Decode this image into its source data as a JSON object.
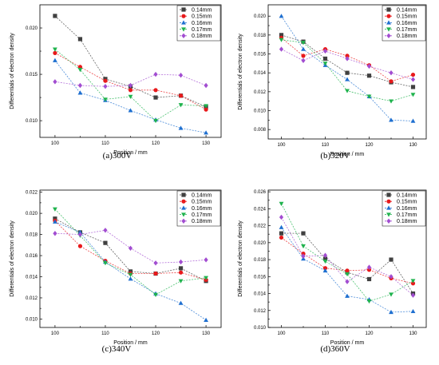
{
  "chart_data": [
    {
      "type": "line",
      "caption": "(a)300V",
      "xlabel": "Position / mm",
      "ylabel": "Differentials of electron density",
      "xlim": [
        97,
        133
      ],
      "ylim": [
        0.0082,
        0.0225
      ],
      "xticks": [
        100,
        110,
        120,
        130
      ],
      "yticks": [
        0.01,
        0.015,
        0.02
      ],
      "ytick_labels": [
        "0.010",
        "0.015",
        "0.020"
      ],
      "legend_position": "top-right",
      "x": [
        100,
        105,
        110,
        115,
        120,
        125,
        130
      ],
      "series": [
        {
          "name": "0.14mm",
          "color": "#404040",
          "marker": "square",
          "values": [
            0.0213,
            0.0188,
            0.0145,
            0.0137,
            0.0125,
            0.0127,
            0.0115
          ]
        },
        {
          "name": "0.15mm",
          "color": "#e8191b",
          "marker": "circle",
          "values": [
            0.0173,
            0.0158,
            0.0143,
            0.0133,
            0.0133,
            0.0127,
            0.0112
          ]
        },
        {
          "name": "0.16mm",
          "color": "#1e6fd0",
          "marker": "triangle-up",
          "values": [
            0.0165,
            0.013,
            0.0122,
            0.0111,
            0.0101,
            0.0092,
            0.0087
          ]
        },
        {
          "name": "0.17mm",
          "color": "#1fb34d",
          "marker": "triangle-down",
          "values": [
            0.0177,
            0.0155,
            0.0123,
            0.0126,
            0.01,
            0.0117,
            0.0116
          ]
        },
        {
          "name": "0.18mm",
          "color": "#a24dd1",
          "marker": "diamond",
          "values": [
            0.0142,
            0.0138,
            0.0137,
            0.0138,
            0.015,
            0.0149,
            0.0138
          ]
        }
      ]
    },
    {
      "type": "line",
      "caption": "(b)320V",
      "xlabel": "Position / mm",
      "ylabel": "Differentials of electron density",
      "xlim": [
        97,
        133
      ],
      "ylim": [
        0.007,
        0.0212
      ],
      "xticks": [
        100,
        110,
        120,
        130
      ],
      "yticks": [
        0.008,
        0.01,
        0.012,
        0.014,
        0.016,
        0.018,
        0.02
      ],
      "ytick_labels": [
        "0.008",
        "0.010",
        "0.012",
        "0.014",
        "0.016",
        "0.018",
        "0.020"
      ],
      "legend_position": "top-right",
      "x": [
        100,
        105,
        110,
        115,
        120,
        125,
        130
      ],
      "series": [
        {
          "name": "0.14mm",
          "color": "#404040",
          "marker": "square",
          "values": [
            0.018,
            0.0173,
            0.0155,
            0.014,
            0.0137,
            0.013,
            0.0125
          ]
        },
        {
          "name": "0.15mm",
          "color": "#e8191b",
          "marker": "circle",
          "values": [
            0.0177,
            0.0158,
            0.0165,
            0.0158,
            0.0148,
            0.0131,
            0.0138
          ]
        },
        {
          "name": "0.16mm",
          "color": "#1e6fd0",
          "marker": "triangle-up",
          "values": [
            0.02,
            0.0165,
            0.0148,
            0.0133,
            0.0115,
            0.009,
            0.0089
          ]
        },
        {
          "name": "0.17mm",
          "color": "#1fb34d",
          "marker": "triangle-down",
          "values": [
            0.0175,
            0.0172,
            0.015,
            0.0121,
            0.0115,
            0.011,
            0.0117
          ]
        },
        {
          "name": "0.18mm",
          "color": "#a24dd1",
          "marker": "diamond",
          "values": [
            0.0165,
            0.0153,
            0.0163,
            0.0155,
            0.0147,
            0.014,
            0.0133
          ]
        }
      ]
    },
    {
      "type": "line",
      "caption": "(c)340V",
      "xlabel": "Position / mm",
      "ylabel": "Differentials of electron density",
      "xlim": [
        97,
        133
      ],
      "ylim": [
        0.0092,
        0.0222
      ],
      "xticks": [
        100,
        110,
        120,
        130
      ],
      "yticks": [
        0.01,
        0.012,
        0.014,
        0.016,
        0.018,
        0.02,
        0.022
      ],
      "ytick_labels": [
        "0.010",
        "0.012",
        "0.014",
        "0.016",
        "0.018",
        "0.020",
        "0.022"
      ],
      "legend_position": "top-right",
      "x": [
        100,
        105,
        110,
        115,
        120,
        125,
        130
      ],
      "series": [
        {
          "name": "0.14mm",
          "color": "#404040",
          "marker": "square",
          "values": [
            0.0195,
            0.0182,
            0.0172,
            0.0145,
            0.0143,
            0.0148,
            0.0136
          ]
        },
        {
          "name": "0.15mm",
          "color": "#e8191b",
          "marker": "circle",
          "values": [
            0.0193,
            0.0169,
            0.0155,
            0.0143,
            0.0143,
            0.0144,
            0.0137
          ]
        },
        {
          "name": "0.16mm",
          "color": "#1e6fd0",
          "marker": "triangle-up",
          "values": [
            0.0192,
            0.0182,
            0.0154,
            0.0138,
            0.0124,
            0.0115,
            0.0099
          ]
        },
        {
          "name": "0.17mm",
          "color": "#1fb34d",
          "marker": "triangle-down",
          "values": [
            0.0204,
            0.0179,
            0.0153,
            0.0142,
            0.0123,
            0.0136,
            0.0139
          ]
        },
        {
          "name": "0.18mm",
          "color": "#a24dd1",
          "marker": "diamond",
          "values": [
            0.0181,
            0.018,
            0.0184,
            0.0167,
            0.0153,
            0.0154,
            0.0156
          ]
        }
      ]
    },
    {
      "type": "line",
      "caption": "(d)360V",
      "xlabel": "Position / mm",
      "ylabel": "Differentials of electron density",
      "xlim": [
        97,
        133
      ],
      "ylim": [
        0.01,
        0.0262
      ],
      "xticks": [
        100,
        110,
        120,
        130
      ],
      "yticks": [
        0.01,
        0.012,
        0.014,
        0.016,
        0.018,
        0.02,
        0.022,
        0.024,
        0.026
      ],
      "ytick_labels": [
        "0.010",
        "0.012",
        "0.014",
        "0.016",
        "0.018",
        "0.020",
        "0.022",
        "0.024",
        "0.026"
      ],
      "legend_position": "top-right",
      "x": [
        100,
        105,
        110,
        115,
        120,
        125,
        130
      ],
      "series": [
        {
          "name": "0.14mm",
          "color": "#404040",
          "marker": "square",
          "values": [
            0.0211,
            0.0211,
            0.0181,
            0.0165,
            0.0157,
            0.018,
            0.014
          ]
        },
        {
          "name": "0.15mm",
          "color": "#e8191b",
          "marker": "circle",
          "values": [
            0.0206,
            0.0187,
            0.017,
            0.0167,
            0.0168,
            0.0158,
            0.0152
          ]
        },
        {
          "name": "0.16mm",
          "color": "#1e6fd0",
          "marker": "triangle-up",
          "values": [
            0.0218,
            0.0181,
            0.0167,
            0.0137,
            0.0133,
            0.0118,
            0.0119
          ]
        },
        {
          "name": "0.17mm",
          "color": "#1fb34d",
          "marker": "triangle-down",
          "values": [
            0.0246,
            0.0196,
            0.0178,
            0.0163,
            0.0131,
            0.0139,
            0.0155
          ]
        },
        {
          "name": "0.18mm",
          "color": "#a24dd1",
          "marker": "diamond",
          "values": [
            0.023,
            0.0184,
            0.0185,
            0.0154,
            0.0171,
            0.016,
            0.0138
          ]
        }
      ]
    }
  ]
}
